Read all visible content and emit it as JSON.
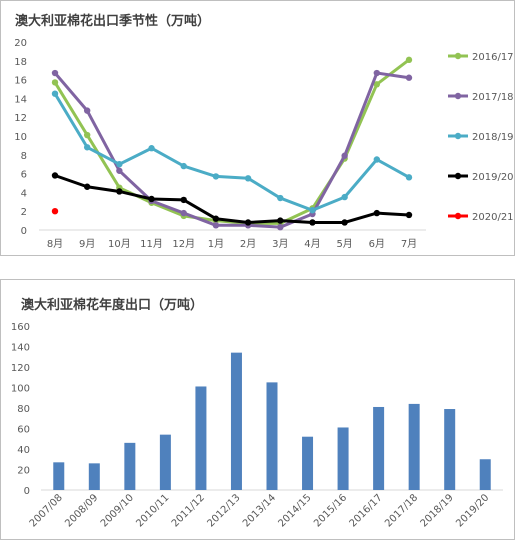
{
  "chart_data": [
    {
      "type": "line",
      "title": "澳大利亚棉花出口季节性（万吨）",
      "categories": [
        "8月",
        "9月",
        "10月",
        "11月",
        "12月",
        "1月",
        "2月",
        "3月",
        "4月",
        "5月",
        "6月",
        "7月"
      ],
      "ylim": [
        0,
        20
      ],
      "yticks": [
        0,
        2,
        4,
        6,
        8,
        10,
        12,
        14,
        16,
        18,
        20
      ],
      "grid": false,
      "legend_position": "right",
      "series": [
        {
          "name": "2016/17",
          "color": "#92c353",
          "values": [
            15.7,
            10.1,
            4.5,
            2.9,
            1.5,
            1.0,
            0.7,
            0.7,
            2.3,
            7.6,
            15.5,
            18.1
          ]
        },
        {
          "name": "2017/18",
          "color": "#8064a2",
          "values": [
            16.7,
            12.7,
            6.3,
            3.1,
            1.8,
            0.5,
            0.5,
            0.3,
            1.7,
            7.9,
            16.7,
            16.2
          ]
        },
        {
          "name": "2018/19",
          "color": "#4bacc6",
          "values": [
            14.5,
            8.8,
            7.0,
            8.7,
            6.8,
            5.7,
            5.5,
            3.4,
            2.1,
            3.5,
            7.5,
            5.6
          ]
        },
        {
          "name": "2019/20",
          "color": "#000000",
          "values": [
            5.8,
            4.6,
            4.1,
            3.3,
            3.2,
            1.2,
            0.8,
            1.0,
            0.8,
            0.8,
            1.8,
            1.6
          ]
        },
        {
          "name": "2020/21",
          "color": "#ff0000",
          "values": [
            2.0,
            null,
            null,
            null,
            null,
            null,
            null,
            null,
            null,
            null,
            null,
            null
          ]
        }
      ]
    },
    {
      "type": "bar",
      "title": "澳大利亚棉花年度出口（万吨）",
      "categories": [
        "2007/08",
        "2008/09",
        "2009/10",
        "2010/11",
        "2011/12",
        "2012/13",
        "2013/14",
        "2014/15",
        "2015/16",
        "2016/17",
        "2017/18",
        "2018/19",
        "2019/20"
      ],
      "values": [
        27,
        26,
        46,
        54,
        101,
        134,
        105,
        52,
        61,
        81,
        84,
        79,
        30
      ],
      "color": "#4f81bd",
      "ylim": [
        0,
        160
      ],
      "yticks": [
        0,
        20,
        40,
        60,
        80,
        100,
        120,
        140,
        160
      ],
      "grid": false
    }
  ]
}
